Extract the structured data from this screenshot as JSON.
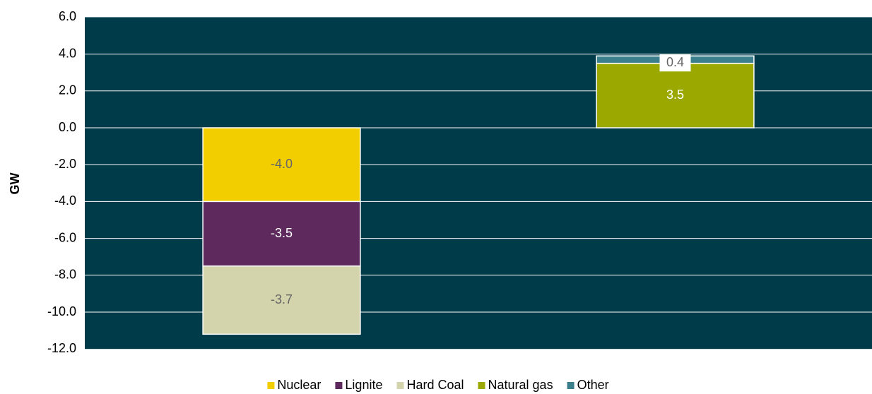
{
  "chart_data": {
    "type": "stacked_bar",
    "y_label": "GW",
    "categories": [
      null,
      null
    ],
    "series": [
      {
        "name": "Nuclear",
        "color": "#f2cd00",
        "values": [
          -4.0,
          null
        ],
        "value_labels": [
          "-4.0",
          null
        ]
      },
      {
        "name": "Lignite",
        "color": "#5e2a5e",
        "values": [
          -3.5,
          null
        ],
        "value_labels": [
          "-3.5",
          null
        ]
      },
      {
        "name": "Hard Coal",
        "color": "#d3d3ac",
        "values": [
          -3.7,
          null
        ],
        "value_labels": [
          "-3.7",
          null
        ]
      },
      {
        "name": "Natural gas",
        "color": "#9ba800",
        "values": [
          null,
          3.5
        ],
        "value_labels": [
          null,
          "3.5"
        ]
      },
      {
        "name": "Other",
        "color": "#3b7f8c",
        "values": [
          null,
          0.4
        ],
        "value_labels": [
          null,
          "0.4"
        ]
      }
    ],
    "ylim": [
      -12,
      6
    ],
    "yticks": [
      {
        "value": -12,
        "label": "-12.0"
      },
      {
        "value": -10,
        "label": "-10.0"
      },
      {
        "value": -8,
        "label": "-8.0"
      },
      {
        "value": -6,
        "label": "-6.0"
      },
      {
        "value": -4,
        "label": "-4.0"
      },
      {
        "value": -2,
        "label": "-2.0"
      },
      {
        "value": 0,
        "label": "0.0"
      },
      {
        "value": 2,
        "label": "2.0"
      },
      {
        "value": 4,
        "label": "4.0"
      },
      {
        "value": 6,
        "label": "6.0"
      }
    ],
    "grid": true,
    "background": "#003b4a",
    "legend": "bottom"
  }
}
